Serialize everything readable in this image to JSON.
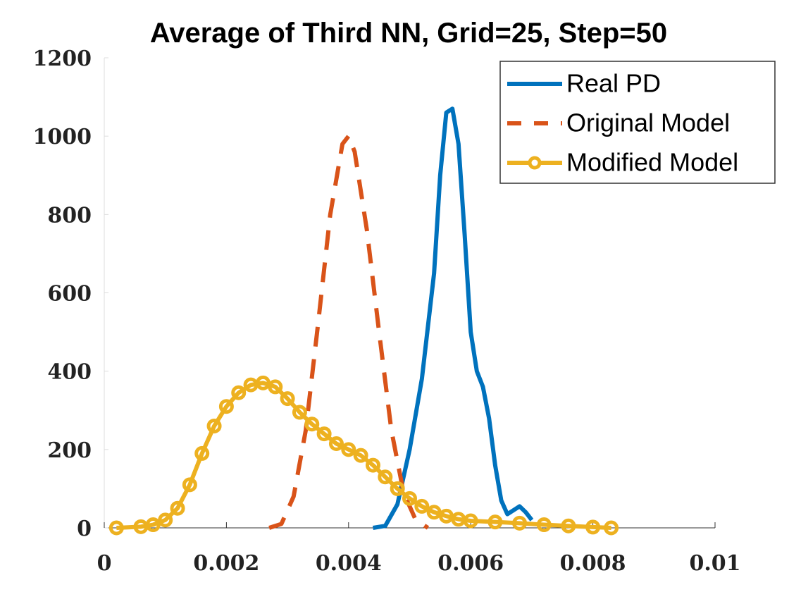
{
  "chart_data": {
    "type": "line",
    "title": "Average of Third NN, Grid=25, Step=50",
    "xlim": [
      0,
      0.01
    ],
    "xticks": [
      0,
      0.002,
      0.004,
      0.006,
      0.008,
      0.01
    ],
    "ylim": [
      0,
      1200
    ],
    "yticks": [
      0,
      200,
      400,
      600,
      800,
      1000,
      1200
    ],
    "grid": false,
    "legend": "northeast",
    "series": [
      {
        "name": "Real PD",
        "color": "#0072bd",
        "linestyle": "solid",
        "x": [
          0.0044,
          0.0046,
          0.0048,
          0.005,
          0.0052,
          0.0054,
          0.0055,
          0.0056,
          0.0057,
          0.0058,
          0.0059,
          0.006,
          0.0061,
          0.0062,
          0.0063,
          0.0064,
          0.0065,
          0.0066,
          0.0067,
          0.0068,
          0.0069,
          0.007
        ],
        "values": [
          0,
          5,
          60,
          200,
          380,
          650,
          900,
          1060,
          1070,
          980,
          750,
          500,
          400,
          360,
          280,
          160,
          70,
          35,
          45,
          55,
          40,
          20
        ]
      },
      {
        "name": "Original Model",
        "color": "#d95319",
        "linestyle": "dashed",
        "x": [
          0.0027,
          0.0029,
          0.0031,
          0.0033,
          0.0035,
          0.0037,
          0.0039,
          0.004,
          0.0041,
          0.0043,
          0.0045,
          0.0047,
          0.0049,
          0.0051,
          0.0053
        ],
        "values": [
          0,
          10,
          80,
          250,
          520,
          800,
          980,
          1000,
          960,
          760,
          500,
          250,
          90,
          20,
          0
        ]
      },
      {
        "name": "Modified Model",
        "color": "#edb120",
        "linestyle": "solid",
        "marker": "o",
        "x": [
          0.0002,
          0.0006,
          0.0008,
          0.001,
          0.0012,
          0.0014,
          0.0016,
          0.0018,
          0.002,
          0.0022,
          0.0024,
          0.0026,
          0.0028,
          0.003,
          0.0032,
          0.0034,
          0.0036,
          0.0038,
          0.004,
          0.0042,
          0.0044,
          0.0046,
          0.0048,
          0.005,
          0.0052,
          0.0054,
          0.0056,
          0.0058,
          0.006,
          0.0064,
          0.0068,
          0.0072,
          0.0076,
          0.008,
          0.0083
        ],
        "values": [
          0,
          3,
          8,
          20,
          50,
          110,
          190,
          260,
          310,
          345,
          365,
          370,
          360,
          330,
          295,
          265,
          240,
          215,
          200,
          185,
          160,
          130,
          100,
          75,
          55,
          40,
          30,
          22,
          18,
          15,
          12,
          8,
          5,
          2,
          0
        ]
      }
    ]
  }
}
